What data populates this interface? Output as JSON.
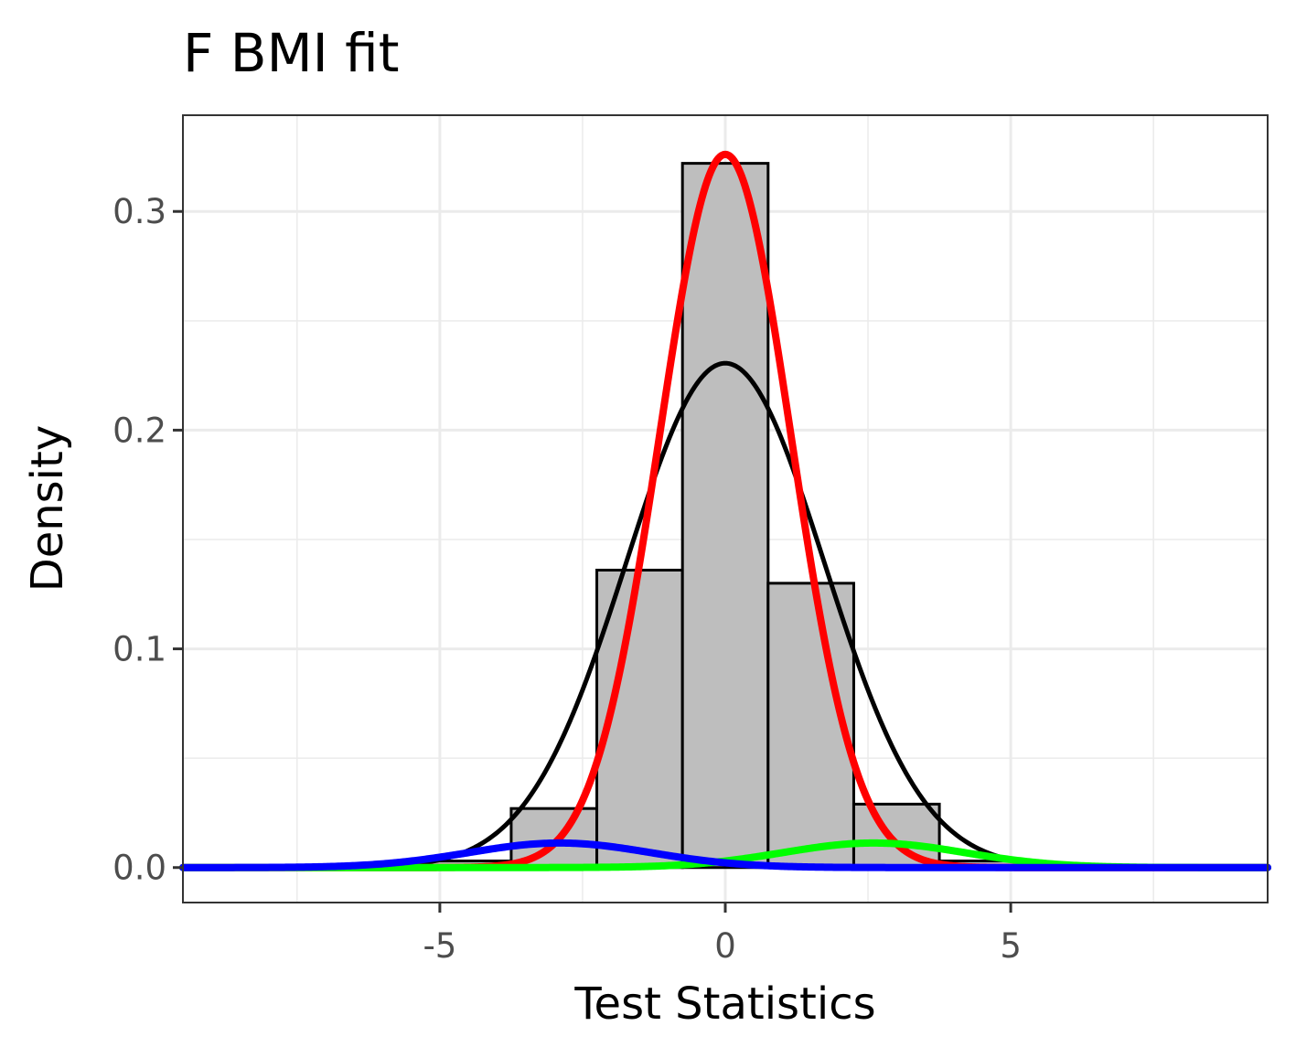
{
  "chart_data": {
    "type": "bar",
    "title": "F BMI fit",
    "xlabel": "Test Statistics",
    "ylabel": "Density",
    "xlim": [
      -9.5,
      9.5
    ],
    "ylim": [
      -0.016,
      0.344
    ],
    "x_ticks": [
      -5,
      0,
      5
    ],
    "x_tick_labels": [
      "-5",
      "0",
      "5"
    ],
    "y_ticks": [
      0.0,
      0.1,
      0.2,
      0.3
    ],
    "y_tick_labels": [
      "0.0",
      "0.1",
      "0.2",
      "0.3"
    ],
    "grid": true,
    "histogram": {
      "bin_edges": [
        -5.25,
        -3.75,
        -2.25,
        -0.75,
        0.75,
        2.25,
        3.75,
        5.25
      ],
      "values": [
        0.003,
        0.027,
        0.136,
        0.322,
        0.13,
        0.029,
        0.003
      ],
      "fill": "#bebebe",
      "stroke": "#000000"
    },
    "series": [
      {
        "type": "normal_density",
        "mean": 0.0,
        "sd": 1.73,
        "weight": 1.0,
        "color": "#000000"
      },
      {
        "type": "normal_density",
        "mean": 0.0,
        "sd": 1.15,
        "weight": 0.94,
        "color": "#ff0000"
      },
      {
        "type": "normal_density",
        "mean": 2.6,
        "sd": 1.6,
        "weight": 0.045,
        "color": "#00ff00"
      },
      {
        "type": "normal_density",
        "mean": -2.9,
        "sd": 1.6,
        "weight": 0.045,
        "color": "#0000ff"
      }
    ]
  }
}
